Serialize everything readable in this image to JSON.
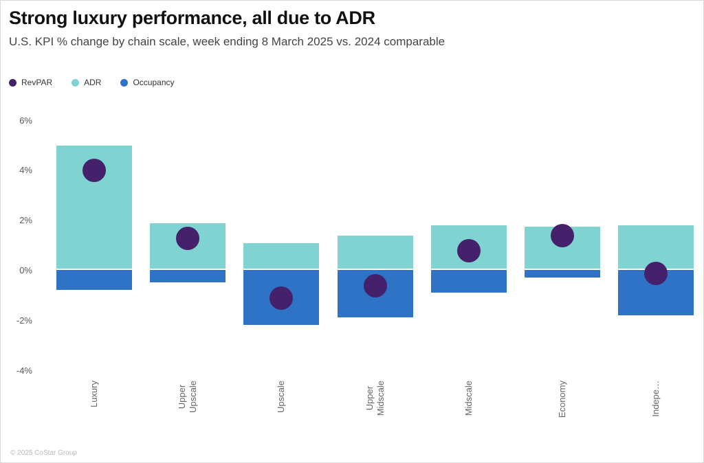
{
  "header": {
    "title": "Strong luxury performance, all due to ADR",
    "subtitle": "U.S. KPI % change by chain scale, week ending 8 March 2025 vs. 2024 comparable"
  },
  "legend": [
    {
      "label": "RevPAR",
      "color": "#45206B"
    },
    {
      "label": "ADR",
      "color": "#7FD3D1"
    },
    {
      "label": "Occupancy",
      "color": "#2F73C6"
    }
  ],
  "chart_data": {
    "type": "bar",
    "title": "Strong luxury performance, all due to ADR",
    "subtitle": "U.S. KPI % change by chain scale, week ending 8 March 2025 vs. 2024 comparable",
    "categories": [
      "Luxury",
      "Upper Upscale",
      "Upscale",
      "Upper Midscale",
      "Midscale",
      "Economy",
      "Indepe…"
    ],
    "series": [
      {
        "name": "ADR",
        "type": "column",
        "color": "#7FD3D1",
        "values": [
          5.0,
          1.9,
          1.1,
          1.4,
          1.8,
          1.75,
          1.8
        ]
      },
      {
        "name": "Occupancy",
        "type": "column",
        "color": "#2F73C6",
        "values": [
          -0.8,
          -0.5,
          -2.2,
          -1.9,
          -0.9,
          -0.3,
          -1.8
        ]
      },
      {
        "name": "RevPAR",
        "type": "point",
        "color": "#45206B",
        "values": [
          4.0,
          1.3,
          -1.1,
          -0.6,
          0.8,
          1.4,
          -0.1
        ]
      }
    ],
    "xlabel": "",
    "ylabel": "",
    "yticks": [
      6,
      4,
      2,
      0,
      -2,
      -4
    ],
    "ytick_suffix": "%",
    "ylim": [
      -4.6,
      6.6
    ],
    "grid": false,
    "legend_position": "top-left"
  },
  "footer": {
    "copyright": "© 2025 CoStar Group"
  }
}
